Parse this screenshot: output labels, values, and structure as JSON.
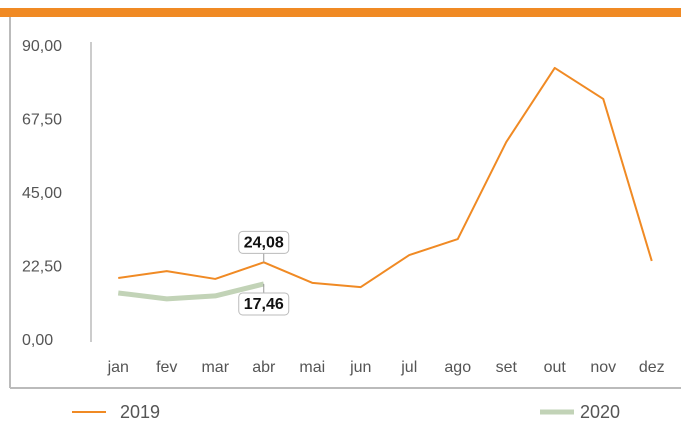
{
  "chart_data": {
    "type": "line",
    "categories": [
      "jan",
      "fev",
      "mar",
      "abr",
      "mai",
      "jun",
      "jul",
      "ago",
      "set",
      "out",
      "nov",
      "dez"
    ],
    "series": [
      {
        "name": "2019",
        "color": "#f08a24",
        "values": [
          19.3,
          21.4,
          19.0,
          24.08,
          17.8,
          16.5,
          26.3,
          31.2,
          60.9,
          83.6,
          74.1,
          24.5
        ],
        "value_labels": [
          null,
          null,
          null,
          "24,08",
          null,
          null,
          null,
          null,
          null,
          null,
          null,
          null
        ]
      },
      {
        "name": "2020",
        "color": "#c2d3b7",
        "values": [
          14.7,
          12.9,
          13.8,
          17.46,
          null,
          null,
          null,
          null,
          null,
          null,
          null,
          null
        ],
        "value_labels": [
          null,
          null,
          null,
          "17,46",
          null,
          null,
          null,
          null,
          null,
          null,
          null,
          null
        ]
      }
    ],
    "ylim": [
      0,
      90
    ],
    "yticks": [
      {
        "value": 0,
        "label": "0,00"
      },
      {
        "value": 22.5,
        "label": "22,50"
      },
      {
        "value": 45,
        "label": "45,00"
      },
      {
        "value": 67.5,
        "label": "67,50"
      },
      {
        "value": 90,
        "label": "90,00"
      }
    ],
    "grid": false
  }
}
